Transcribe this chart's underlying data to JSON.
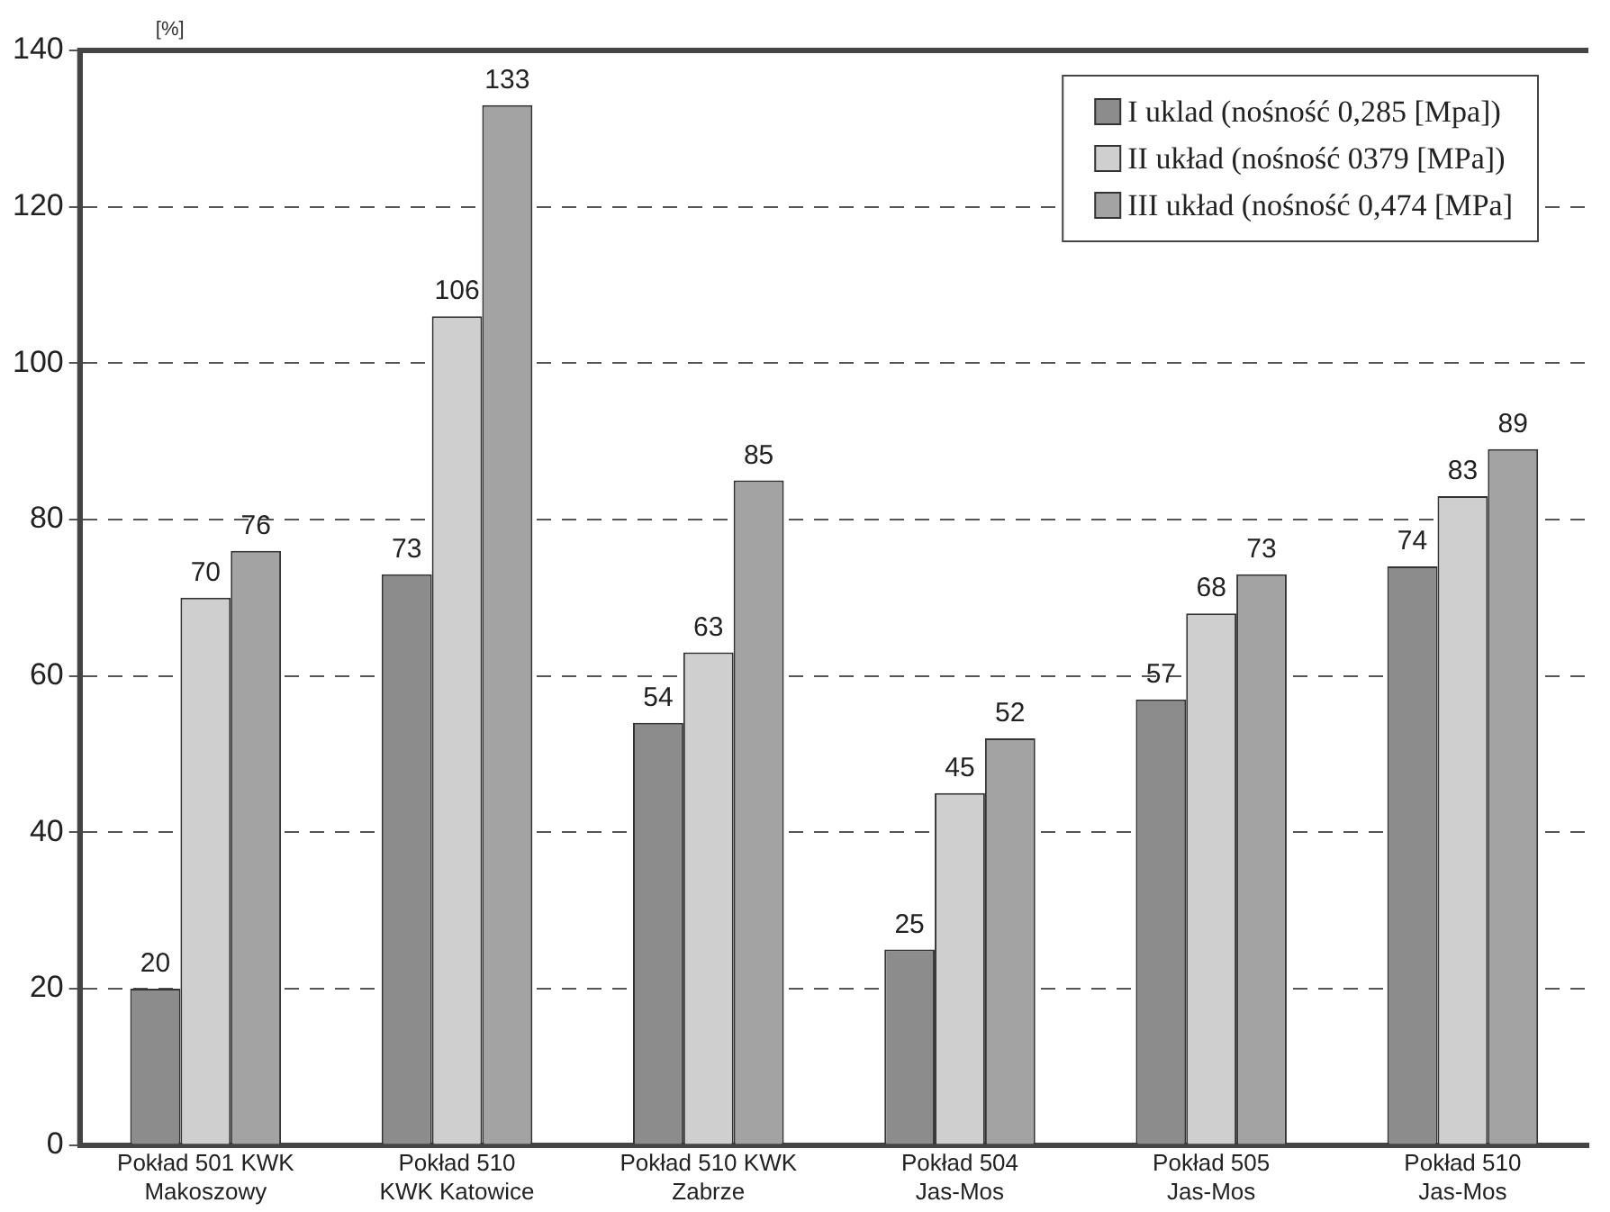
{
  "chart_data": {
    "type": "bar",
    "ylabel": "[%]",
    "categories": [
      "Pokład 501 KWK\nMakoszowy",
      "Pokład 510\nKWK Katowice",
      "Pokład 510 KWK\nZabrze",
      "Pokład 504\nJas-Mos",
      "Pokład 505\nJas-Mos",
      "Pokład 510\nJas-Mos"
    ],
    "series": [
      {
        "name": "I uklad (nośność 0,285 [Mpa])",
        "color": "#8c8c8c",
        "values": [
          20,
          73,
          54,
          25,
          57,
          74
        ]
      },
      {
        "name": "II układ (nośność 0379 [MPa])",
        "color": "#cfcfcf",
        "values": [
          70,
          106,
          63,
          45,
          68,
          83
        ]
      },
      {
        "name": "III układ (nośność 0,474 [MPa]",
        "color": "#a3a3a3",
        "values": [
          76,
          133,
          85,
          52,
          73,
          89
        ]
      }
    ],
    "ylim": [
      0,
      140
    ],
    "yticks": [
      0,
      20,
      40,
      60,
      80,
      100,
      120,
      140
    ],
    "grid": "y",
    "legend": "top right",
    "data_labels": true
  }
}
